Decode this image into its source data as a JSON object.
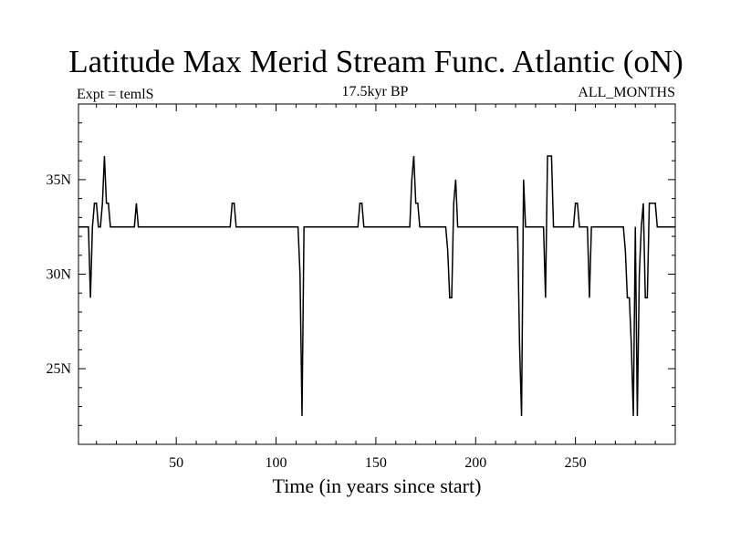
{
  "chart_data": {
    "type": "line",
    "title": "Latitude Max Merid Stream Func. Atlantic (oN)",
    "left_label": "Expt = temlS",
    "center_label": "17.5kyr BP",
    "right_label": "ALL_MONTHS",
    "xlabel": "Time (in years since start)",
    "ylabel": "",
    "xlim": [
      1,
      300
    ],
    "ylim": [
      21,
      39
    ],
    "xticks": [
      50,
      100,
      150,
      200,
      250
    ],
    "xtick_labels": [
      "50",
      "100",
      "150",
      "200",
      "250"
    ],
    "yticks": [
      25,
      30,
      35
    ],
    "ytick_labels": [
      "25N",
      "30N",
      "35N"
    ],
    "grid": false,
    "series": [
      {
        "points": [
          [
            1,
            32.5
          ],
          [
            6,
            32.5
          ],
          [
            7,
            28.75
          ],
          [
            8,
            32.5
          ],
          [
            9,
            33.75
          ],
          [
            10,
            33.75
          ],
          [
            11,
            32.5
          ],
          [
            12,
            32.5
          ],
          [
            13,
            33.75
          ],
          [
            14,
            36.25
          ],
          [
            15,
            33.75
          ],
          [
            16,
            33.75
          ],
          [
            17,
            32.5
          ],
          [
            28,
            32.5
          ],
          [
            29,
            32.5
          ],
          [
            30,
            33.75
          ],
          [
            31,
            32.5
          ],
          [
            76,
            32.5
          ],
          [
            77,
            32.5
          ],
          [
            78,
            33.75
          ],
          [
            79,
            33.75
          ],
          [
            80,
            32.5
          ],
          [
            111,
            32.5
          ],
          [
            112,
            30.0
          ],
          [
            113,
            22.5
          ],
          [
            114,
            32.5
          ],
          [
            140,
            32.5
          ],
          [
            141,
            32.5
          ],
          [
            142,
            33.75
          ],
          [
            143,
            33.75
          ],
          [
            144,
            32.5
          ],
          [
            166,
            32.5
          ],
          [
            167,
            32.5
          ],
          [
            168,
            35.0
          ],
          [
            169,
            36.25
          ],
          [
            170,
            33.75
          ],
          [
            171,
            33.75
          ],
          [
            172,
            32.5
          ],
          [
            185,
            32.5
          ],
          [
            186,
            31.25
          ],
          [
            187,
            28.75
          ],
          [
            188,
            28.75
          ],
          [
            189,
            33.75
          ],
          [
            190,
            35.0
          ],
          [
            191,
            32.5
          ],
          [
            221,
            32.5
          ],
          [
            222,
            26.25
          ],
          [
            223,
            22.5
          ],
          [
            224,
            35.0
          ],
          [
            225,
            32.5
          ],
          [
            234,
            32.5
          ],
          [
            235,
            28.75
          ],
          [
            236,
            36.25
          ],
          [
            238,
            36.25
          ],
          [
            239,
            32.5
          ],
          [
            248,
            32.5
          ],
          [
            249,
            32.5
          ],
          [
            250,
            33.75
          ],
          [
            251,
            33.75
          ],
          [
            252,
            32.5
          ],
          [
            256,
            32.5
          ],
          [
            257,
            28.75
          ],
          [
            258,
            32.5
          ],
          [
            261,
            32.5
          ],
          [
            274,
            32.5
          ],
          [
            275,
            31.25
          ],
          [
            276,
            28.75
          ],
          [
            277,
            28.75
          ],
          [
            278,
            26.25
          ],
          [
            279,
            22.5
          ],
          [
            280,
            32.5
          ],
          [
            281,
            22.5
          ],
          [
            282,
            30.0
          ],
          [
            283,
            32.5
          ],
          [
            284,
            33.75
          ],
          [
            285,
            28.75
          ],
          [
            286,
            28.75
          ],
          [
            287,
            33.75
          ],
          [
            290,
            33.75
          ],
          [
            291,
            32.5
          ],
          [
            300,
            32.5
          ]
        ]
      }
    ]
  }
}
